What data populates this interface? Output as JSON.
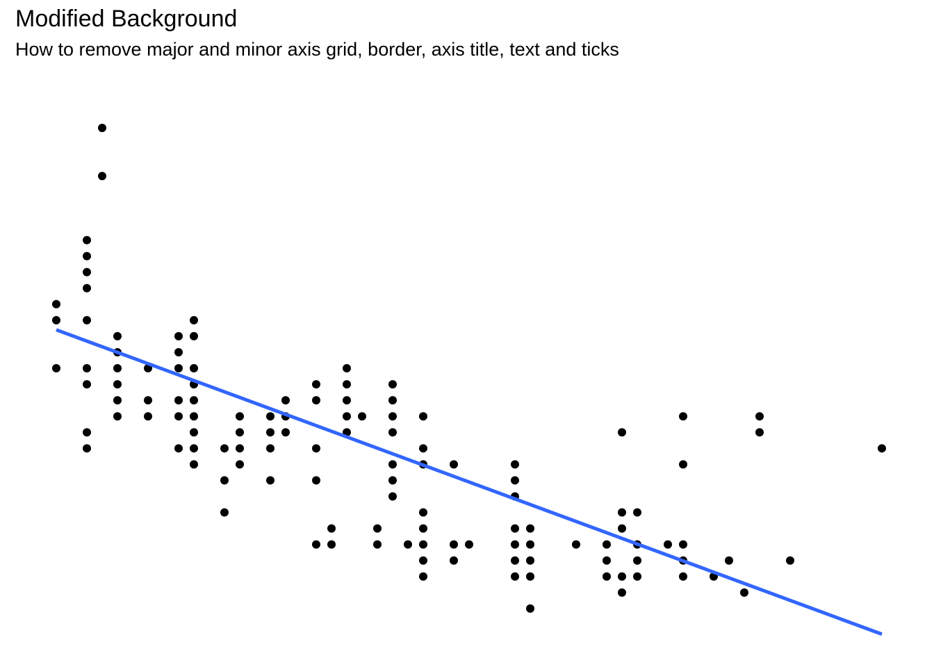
{
  "chart_data": {
    "type": "scatter",
    "title": "Modified Background",
    "subtitle": "How to remove major and minor axis grid, border, axis title, text and ticks",
    "xlabel": "",
    "ylabel": "",
    "grid": false,
    "axes_visible": false,
    "xlim": [
      1,
      55
    ],
    "ylim": [
      0,
      35
    ],
    "point_color": "#000000",
    "trend_color": "#3366FF",
    "trend_line": {
      "x": [
        1,
        55
      ],
      "y": [
        19.4,
        0.4
      ]
    },
    "points": [
      [
        4,
        32
      ],
      [
        4,
        29
      ],
      [
        3,
        25
      ],
      [
        3,
        24
      ],
      [
        3,
        23
      ],
      [
        3,
        22
      ],
      [
        3,
        20
      ],
      [
        1,
        21
      ],
      [
        1,
        20
      ],
      [
        1,
        17
      ],
      [
        3,
        17
      ],
      [
        3,
        16
      ],
      [
        3,
        13
      ],
      [
        3,
        12
      ],
      [
        5,
        19
      ],
      [
        5,
        18
      ],
      [
        5,
        17
      ],
      [
        5,
        16
      ],
      [
        5,
        15
      ],
      [
        5,
        14
      ],
      [
        7,
        17
      ],
      [
        7,
        15
      ],
      [
        7,
        14
      ],
      [
        9,
        19
      ],
      [
        9,
        18
      ],
      [
        9,
        17
      ],
      [
        9,
        15
      ],
      [
        9,
        14
      ],
      [
        9,
        12
      ],
      [
        10,
        20
      ],
      [
        10,
        19
      ],
      [
        10,
        17
      ],
      [
        10,
        16
      ],
      [
        10,
        15
      ],
      [
        10,
        14
      ],
      [
        10,
        13
      ],
      [
        10,
        12
      ],
      [
        10,
        11
      ],
      [
        12,
        12
      ],
      [
        12,
        10
      ],
      [
        12,
        8
      ],
      [
        13,
        14
      ],
      [
        13,
        13
      ],
      [
        13,
        12
      ],
      [
        13,
        11
      ],
      [
        15,
        14
      ],
      [
        15,
        13
      ],
      [
        15,
        12
      ],
      [
        15,
        10
      ],
      [
        16,
        15
      ],
      [
        16,
        14
      ],
      [
        16,
        13
      ],
      [
        18,
        16
      ],
      [
        18,
        15
      ],
      [
        18,
        12
      ],
      [
        18,
        10
      ],
      [
        18,
        6
      ],
      [
        19,
        7
      ],
      [
        19,
        6
      ],
      [
        20,
        17
      ],
      [
        20,
        16
      ],
      [
        20,
        15
      ],
      [
        20,
        14
      ],
      [
        20,
        13
      ],
      [
        21,
        14
      ],
      [
        22,
        7
      ],
      [
        22,
        6
      ],
      [
        23,
        16
      ],
      [
        23,
        15
      ],
      [
        23,
        14
      ],
      [
        23,
        13
      ],
      [
        23,
        11
      ],
      [
        23,
        10
      ],
      [
        23,
        9
      ],
      [
        24,
        6
      ],
      [
        25,
        14
      ],
      [
        25,
        12
      ],
      [
        25,
        11
      ],
      [
        25,
        8
      ],
      [
        25,
        7
      ],
      [
        25,
        6
      ],
      [
        25,
        5
      ],
      [
        25,
        4
      ],
      [
        27,
        11
      ],
      [
        27,
        6
      ],
      [
        27,
        5
      ],
      [
        28,
        6
      ],
      [
        31,
        11
      ],
      [
        31,
        10
      ],
      [
        31,
        9
      ],
      [
        31,
        7
      ],
      [
        31,
        6
      ],
      [
        31,
        5
      ],
      [
        31,
        4
      ],
      [
        32,
        7
      ],
      [
        32,
        6
      ],
      [
        32,
        5
      ],
      [
        32,
        4
      ],
      [
        32,
        2
      ],
      [
        35,
        6
      ],
      [
        37,
        6
      ],
      [
        37,
        5
      ],
      [
        37,
        4
      ],
      [
        38,
        13
      ],
      [
        38,
        8
      ],
      [
        38,
        7
      ],
      [
        38,
        4
      ],
      [
        38,
        3
      ],
      [
        39,
        8
      ],
      [
        39,
        6
      ],
      [
        39,
        5
      ],
      [
        39,
        4
      ],
      [
        41,
        6
      ],
      [
        42,
        14
      ],
      [
        42,
        11
      ],
      [
        42,
        6
      ],
      [
        42,
        5
      ],
      [
        42,
        4
      ],
      [
        44,
        4
      ],
      [
        45,
        5
      ],
      [
        46,
        3
      ],
      [
        47,
        14
      ],
      [
        47,
        13
      ],
      [
        49,
        5
      ],
      [
        55,
        12
      ]
    ]
  }
}
